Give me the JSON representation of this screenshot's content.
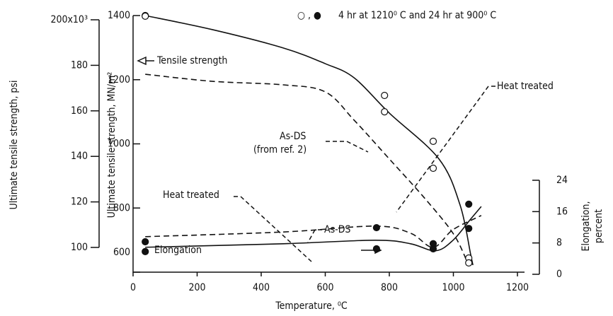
{
  "chart_data": {
    "type": "line",
    "xlabel": "Temperature, ⁰C",
    "ylabel": "Ultimate tensile strength, MN/m²",
    "y3label": "Ultimate tensile strength, psi",
    "y2label": [
      "Elongation,",
      "percent"
    ],
    "legend_text": "4 hr at 1210⁰ C and 24 hr at 900⁰ C",
    "legend_symbols": "○ , ●",
    "annotations": [
      "Tensile strength",
      "Heat treated",
      "As-DS",
      "(from ref. 2)",
      "Heat treated",
      "Elongation",
      "As-DS"
    ],
    "xlim": [
      0,
      1200
    ],
    "xticks": [
      0,
      200,
      400,
      600,
      800,
      1000,
      1200
    ],
    "ylim": [
      600,
      1400
    ],
    "yticks": [
      600,
      800,
      1000,
      1200,
      1400
    ],
    "y2lim": [
      0,
      24
    ],
    "y2ticks": [
      0,
      8,
      16,
      24
    ],
    "y3lim": [
      100,
      200
    ],
    "y3ticks": [
      {
        "value": 100,
        "label": "100"
      },
      120,
      140,
      160,
      180,
      {
        "value": 200,
        "label": "200x10³"
      }
    ],
    "series": [
      {
        "name": "Heat treated",
        "style": "solid",
        "color": "#111",
        "x": [
          38,
          248,
          469,
          600,
          690,
          800,
          955,
          1021,
          1054,
          1061
        ],
        "values": [
          1400,
          1356,
          1299,
          1250,
          1206,
          1096,
          953,
          809,
          655,
          622
        ]
      },
      {
        "name": "As-DS",
        "style": "dashed",
        "color": "#111",
        "x": [
          38,
          248,
          469,
          600,
          690,
          800,
          910,
          999,
          1043
        ],
        "values": [
          1217,
          1195,
          1184,
          1162,
          1074,
          953,
          831,
          721,
          633
        ]
      },
      {
        "name": "Heat treated",
        "style": "solid",
        "color": "#111",
        "axis": "y2",
        "x": [
          38,
          469,
          756,
          866,
          944,
          999,
          1054,
          1087
        ],
        "values": [
          6.9,
          7.8,
          8.7,
          7.8,
          6.0,
          8.7,
          14.1,
          17.3
        ]
      },
      {
        "name": "As-DS",
        "style": "dashed",
        "color": "#111",
        "axis": "y2",
        "x": [
          38,
          469,
          756,
          866,
          937,
          999,
          1087
        ],
        "values": [
          9.6,
          10.8,
          12.3,
          10.5,
          6.9,
          11.4,
          15
        ]
      }
    ],
    "points": [
      {
        "marker": "open",
        "x": [
          38,
          38,
          785,
          785,
          937,
          937,
          1048,
          1048
        ],
        "values": [
          1400,
          1398,
          1151,
          1100,
          1008,
          924,
          644,
          629
        ]
      },
      {
        "marker": "filled",
        "axis": "y2",
        "x": [
          38,
          38,
          760,
          760,
          937,
          937,
          1048,
          1048
        ],
        "values": [
          8.3,
          5.8,
          11.9,
          6.5,
          7.8,
          6.5,
          17.9,
          11.7
        ]
      }
    ]
  }
}
